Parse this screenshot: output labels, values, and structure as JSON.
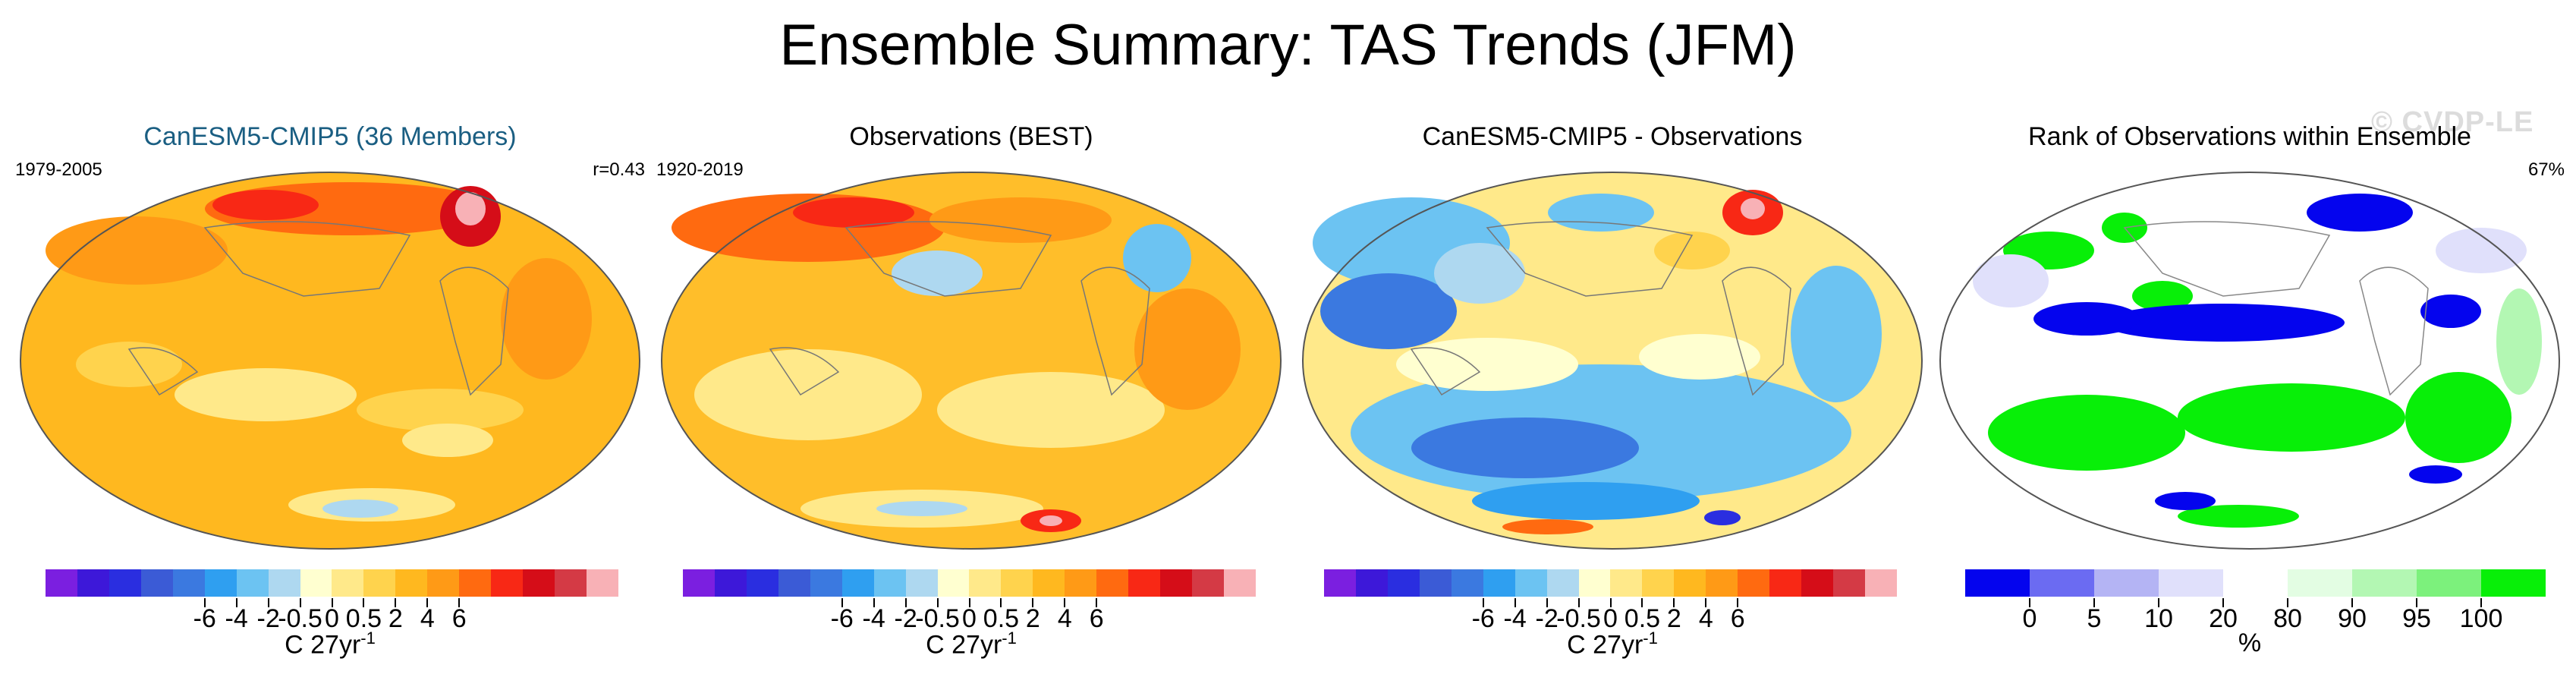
{
  "title": "Ensemble Summary: TAS Trends (JFM)",
  "watermark": "© CVDP-LE",
  "colorbar": {
    "colors": [
      "#7b1fe0",
      "#3d18d9",
      "#2a2ee0",
      "#3b5bd6",
      "#3b79e0",
      "#2f9ff0",
      "#6cc3f2",
      "#aed8f0",
      "#ffffd0",
      "#ffe98a",
      "#ffd34d",
      "#ffb81f",
      "#ff9a16",
      "#ff6a10",
      "#f82815",
      "#d50d18",
      "#d43a45",
      "#f8b1b6"
    ],
    "tick_labels": [
      "-6",
      "-4",
      "-2",
      "-0.5",
      "0",
      "0.5",
      "2",
      "4",
      "6"
    ],
    "unit": "C 27yr",
    "unit_sup": "-1"
  },
  "rank_colorbar": {
    "colors": [
      "#0404ee",
      "#6b6bf2",
      "#b4b4f4",
      "#e0e0fb",
      "#ffffff",
      "#e3fde3",
      "#b3f7b3",
      "#7cf17c",
      "#08ef08"
    ],
    "tick_labels": [
      "0",
      "5",
      "10",
      "20",
      "80",
      "90",
      "95",
      "100"
    ],
    "unit": "%"
  },
  "panels": [
    {
      "title": "CanESM5-CMIP5 (36 Members)",
      "left_label": "1979-2005",
      "right_label": "r=0.43",
      "base_color": "#ffb81f"
    },
    {
      "title": "Observations (BEST)",
      "left_label": "1920-2019",
      "right_label": "",
      "base_color": "#ffbe2a"
    },
    {
      "title": "CanESM5-CMIP5 - Observations",
      "left_label": "",
      "right_label": "",
      "base_color": "#ffe98a"
    },
    {
      "title": "Rank of Observations within Ensemble",
      "left_label": "",
      "right_label": "67%",
      "base_color": "#ffffff"
    }
  ]
}
